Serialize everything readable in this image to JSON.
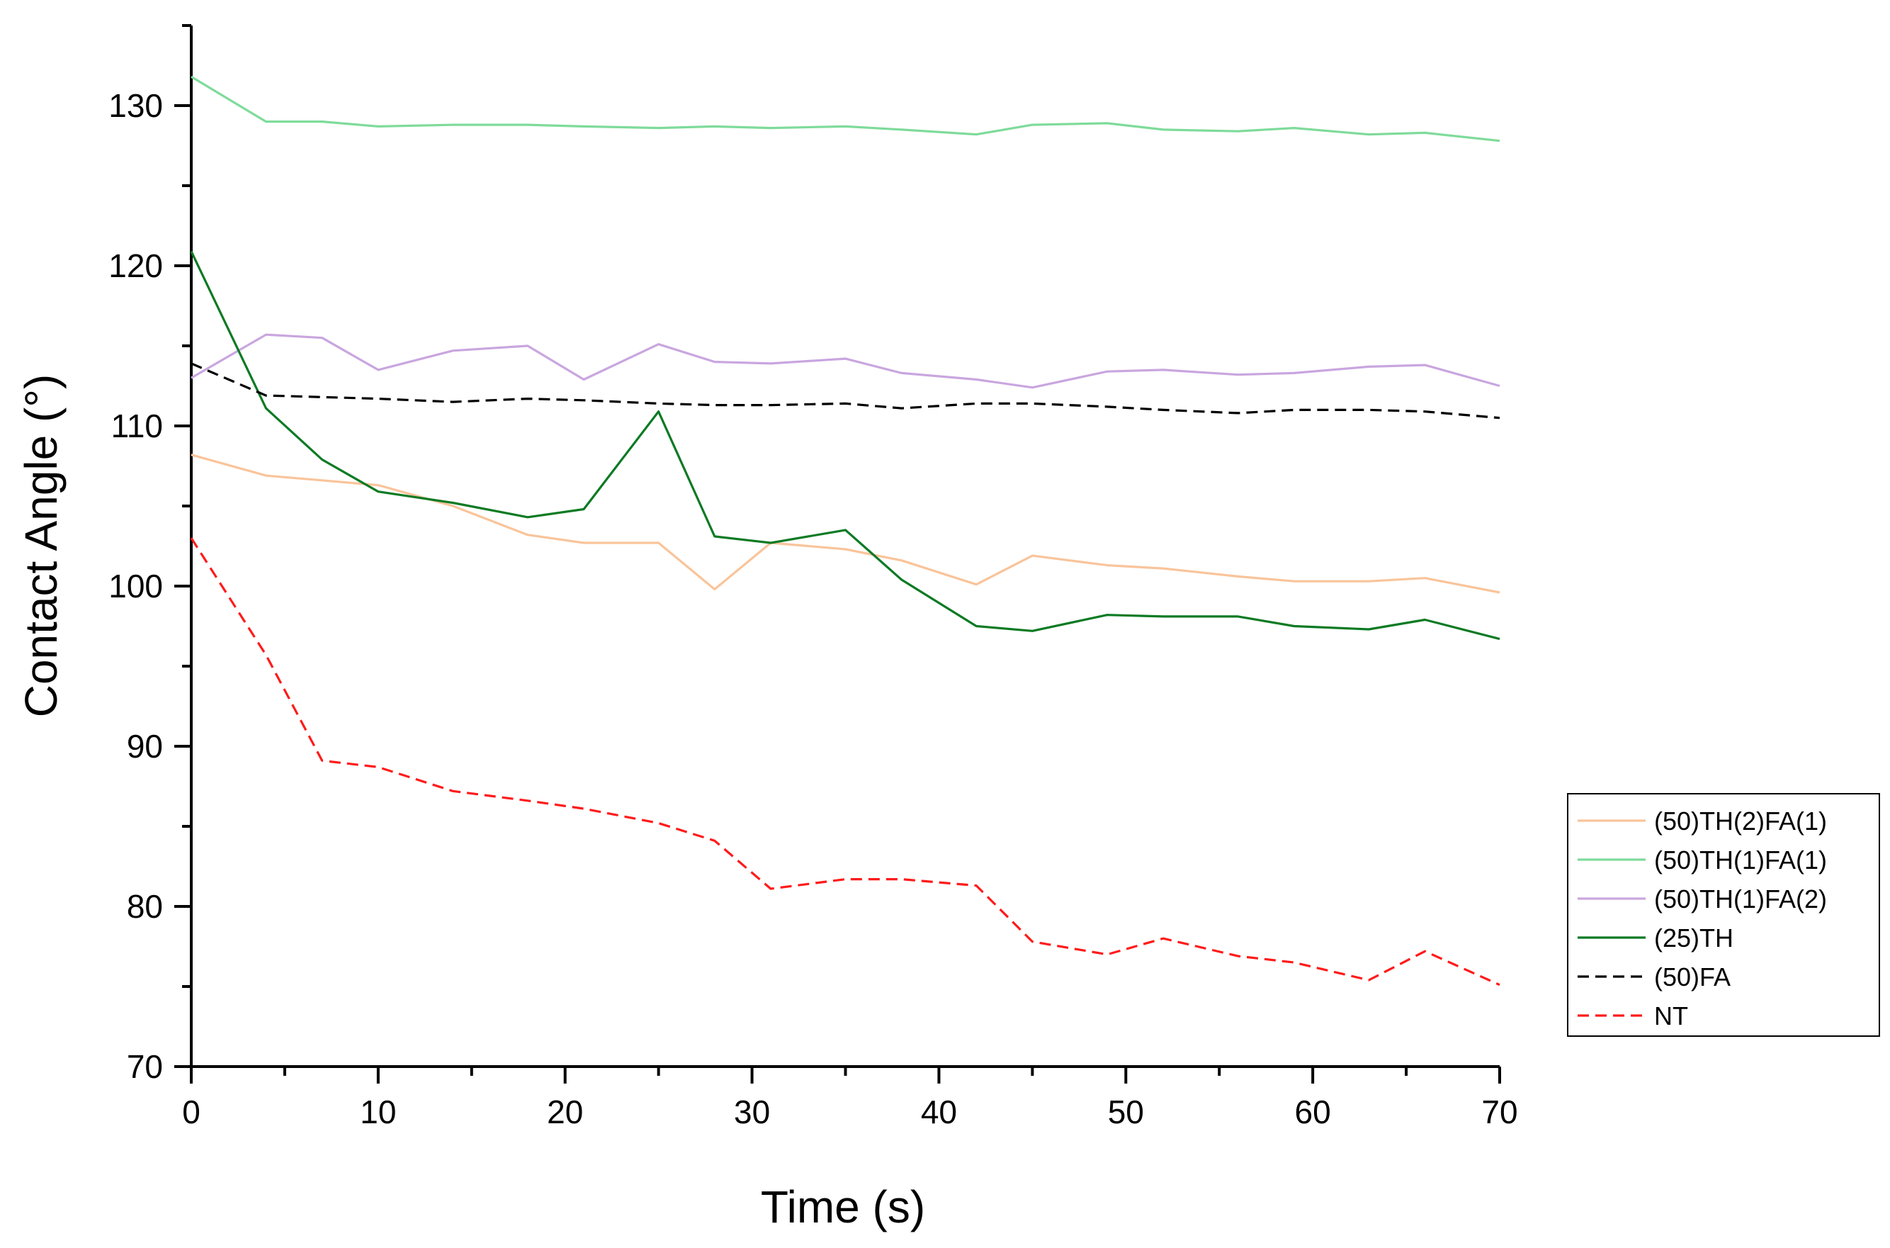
{
  "chart_data": {
    "type": "line",
    "title": "",
    "xlabel": "Time (s)",
    "ylabel": "Contact Angle (°)",
    "xlim": [
      0,
      70
    ],
    "ylim": [
      70,
      135
    ],
    "xticks": [
      0,
      10,
      20,
      30,
      40,
      50,
      60,
      70
    ],
    "yticks": [
      70,
      80,
      90,
      100,
      110,
      120,
      130
    ],
    "xtick_labels": [
      "0",
      "10",
      "20",
      "30",
      "40",
      "50",
      "60",
      "70"
    ],
    "ytick_labels": [
      "70",
      "80",
      "90",
      "100",
      "110",
      "120",
      "130"
    ],
    "grid": false,
    "legend_position": "bottom-right (outside plot)",
    "series": [
      {
        "name": "(50)TH(2)FA(1)",
        "color": "#F9C49A",
        "dash": "solid",
        "x": [
          0,
          4,
          7,
          10,
          14,
          18,
          21,
          25,
          28,
          31,
          35,
          38,
          42,
          45,
          49,
          52,
          56,
          59,
          63,
          66,
          70
        ],
        "y": [
          108.2,
          106.9,
          106.6,
          106.3,
          105.0,
          103.2,
          102.7,
          102.7,
          99.8,
          102.7,
          102.3,
          101.6,
          100.1,
          101.9,
          101.3,
          101.1,
          100.6,
          100.3,
          100.3,
          100.5,
          99.6
        ]
      },
      {
        "name": "(50)TH(1)FA(1)",
        "color": "#7EDB9A",
        "dash": "solid",
        "x": [
          0,
          4,
          7,
          10,
          14,
          18,
          21,
          25,
          28,
          31,
          35,
          38,
          42,
          45,
          49,
          52,
          56,
          59,
          63,
          66,
          70
        ],
        "y": [
          131.8,
          129.0,
          129.0,
          128.7,
          128.8,
          128.8,
          128.7,
          128.6,
          128.7,
          128.6,
          128.7,
          128.5,
          128.2,
          128.8,
          128.9,
          128.5,
          128.4,
          128.6,
          128.2,
          128.3,
          127.8
        ]
      },
      {
        "name": "(50)TH(1)FA(2)",
        "color": "#C9A6DF",
        "dash": "solid",
        "x": [
          0,
          4,
          7,
          10,
          14,
          18,
          21,
          25,
          28,
          31,
          35,
          38,
          42,
          45,
          49,
          52,
          56,
          59,
          63,
          66,
          70
        ],
        "y": [
          113.0,
          115.7,
          115.5,
          113.5,
          114.7,
          115.0,
          112.9,
          115.1,
          114.0,
          113.9,
          114.2,
          113.3,
          112.9,
          112.4,
          113.4,
          113.5,
          113.2,
          113.3,
          113.7,
          113.8,
          112.5
        ]
      },
      {
        "name": "(25)TH",
        "color": "#0B7A23",
        "dash": "solid",
        "x": [
          0,
          4,
          7,
          10,
          14,
          18,
          21,
          25,
          28,
          31,
          35,
          38,
          42,
          45,
          49,
          52,
          56,
          59,
          63,
          66,
          70
        ],
        "y": [
          120.9,
          111.1,
          107.9,
          105.9,
          105.2,
          104.3,
          104.8,
          110.9,
          103.1,
          102.7,
          103.5,
          100.4,
          97.5,
          97.2,
          98.2,
          98.1,
          98.1,
          97.5,
          97.3,
          97.9,
          96.7
        ]
      },
      {
        "name": "(50)FA",
        "color": "#000000",
        "dash": "dashed",
        "x": [
          0,
          4,
          7,
          10,
          14,
          18,
          21,
          25,
          28,
          31,
          35,
          38,
          42,
          45,
          49,
          52,
          56,
          59,
          63,
          66,
          70
        ],
        "y": [
          113.9,
          111.9,
          111.8,
          111.7,
          111.5,
          111.7,
          111.6,
          111.4,
          111.3,
          111.3,
          111.4,
          111.1,
          111.4,
          111.4,
          111.2,
          111.0,
          110.8,
          111.0,
          111.0,
          110.9,
          110.5
        ]
      },
      {
        "name": "NT",
        "color": "#FF1A1A",
        "dash": "dashed",
        "x": [
          0,
          4,
          7,
          10,
          14,
          18,
          21,
          25,
          28,
          31,
          35,
          38,
          42,
          45,
          49,
          52,
          56,
          59,
          63,
          66,
          70
        ],
        "y": [
          103.0,
          95.7,
          89.1,
          88.7,
          87.2,
          86.6,
          86.1,
          85.2,
          84.1,
          81.1,
          81.7,
          81.7,
          81.3,
          77.8,
          77.0,
          78.0,
          76.9,
          76.5,
          75.4,
          77.2,
          75.1
        ]
      }
    ]
  }
}
